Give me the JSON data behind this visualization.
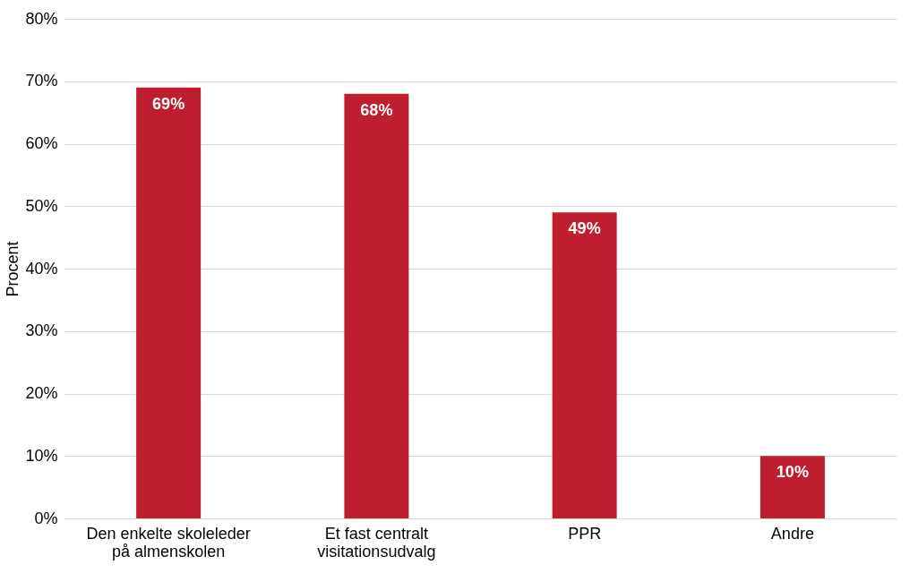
{
  "chart_data": {
    "type": "bar",
    "ylabel": "Procent",
    "categories": [
      "Den enkelte skoleleder på almenskolen",
      "Et fast centralt visitationsudvalg",
      "PPR",
      "Andre"
    ],
    "values": [
      69,
      68,
      49,
      10
    ],
    "value_labels": [
      "69%",
      "68%",
      "49%",
      "10%"
    ],
    "color": "#be1e2d",
    "ylim": [
      0,
      80
    ],
    "yticks": [
      {
        "value": 0,
        "label": "0%"
      },
      {
        "value": 10,
        "label": "10%"
      },
      {
        "value": 20,
        "label": "20%"
      },
      {
        "value": 30,
        "label": "30%"
      },
      {
        "value": 40,
        "label": "40%"
      },
      {
        "value": 50,
        "label": "50%"
      },
      {
        "value": 60,
        "label": "60%"
      },
      {
        "value": 70,
        "label": "70%"
      },
      {
        "value": 80,
        "label": "80%"
      }
    ],
    "grid": "y"
  }
}
